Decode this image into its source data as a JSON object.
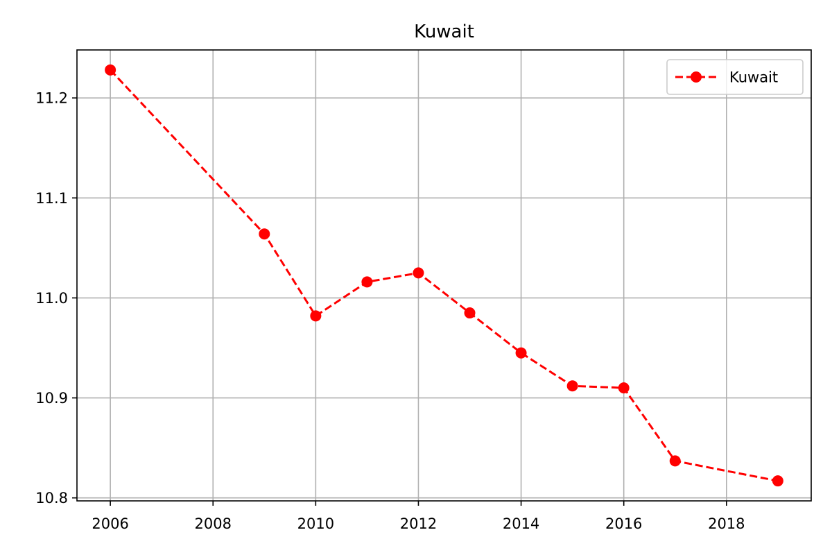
{
  "chart_data": {
    "type": "line",
    "title": "Kuwait",
    "xlabel": "",
    "ylabel": "",
    "xlim": [
      2005.35,
      2019.65
    ],
    "ylim": [
      10.797,
      11.248
    ],
    "x_ticks": [
      2006,
      2008,
      2010,
      2012,
      2014,
      2016,
      2018
    ],
    "y_ticks": [
      10.8,
      10.9,
      11.0,
      11.1,
      11.2
    ],
    "x_tick_labels": [
      "2006",
      "2008",
      "2010",
      "2012",
      "2014",
      "2016",
      "2018"
    ],
    "y_tick_labels": [
      "10.8",
      "10.9",
      "11.0",
      "11.1",
      "11.2"
    ],
    "grid": true,
    "legend_position": "top-right",
    "series": [
      {
        "name": "Kuwait",
        "color": "#ff0000",
        "line_style": "dashed",
        "marker": "circle",
        "x": [
          2006,
          2009,
          2010,
          2011,
          2012,
          2013,
          2014,
          2015,
          2016,
          2017,
          2019
        ],
        "y": [
          11.228,
          11.064,
          10.982,
          11.016,
          11.025,
          10.985,
          10.945,
          10.912,
          10.91,
          10.837,
          10.817
        ]
      }
    ]
  }
}
